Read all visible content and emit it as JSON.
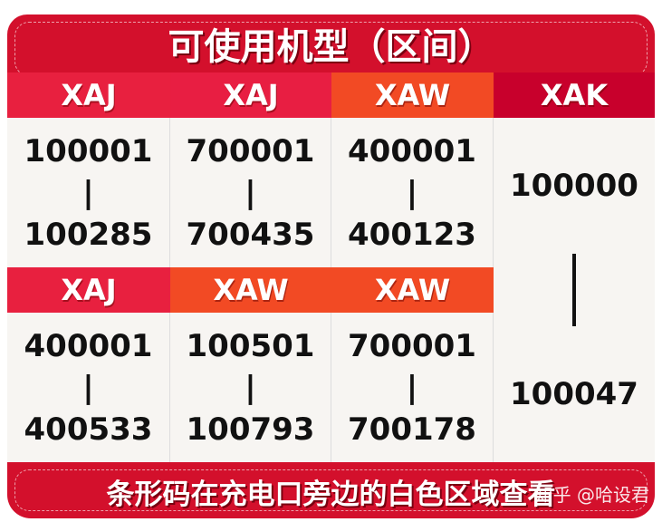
{
  "title": "可使用机型（区间）",
  "colors": {
    "panel": "#d3102c",
    "XAJ": "#e8203f",
    "XAW": "#f24a24",
    "XAK": "#c8002c",
    "cell": "#f7f5f2"
  },
  "cells": [
    {
      "model": "XAJ",
      "start": "100001",
      "end": "100285"
    },
    {
      "model": "XAJ",
      "start": "700001",
      "end": "700435"
    },
    {
      "model": "XAW",
      "start": "400001",
      "end": "400123"
    },
    {
      "model": "XAK",
      "start": "100000",
      "end": "100047"
    },
    {
      "model": "XAJ",
      "start": "400001",
      "end": "400533"
    },
    {
      "model": "XAW",
      "start": "100501",
      "end": "100793"
    },
    {
      "model": "XAW",
      "start": "700001",
      "end": "700178"
    }
  ],
  "separator": "|",
  "footer": "条形码在充电口旁边的白色区域查看",
  "watermark": "知乎 @哈设君"
}
